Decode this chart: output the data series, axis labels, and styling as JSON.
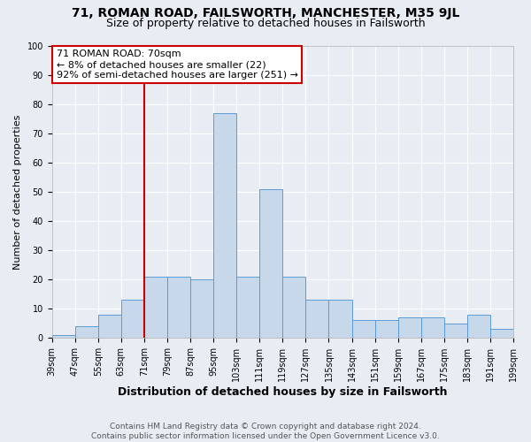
{
  "title": "71, ROMAN ROAD, FAILSWORTH, MANCHESTER, M35 9JL",
  "subtitle": "Size of property relative to detached houses in Failsworth",
  "xlabel": "Distribution of detached houses by size in Failsworth",
  "ylabel": "Number of detached properties",
  "bar_color": "#c8d8eb",
  "bar_edge_color": "#5b9bd5",
  "marker_color": "#cc0000",
  "annotation_title": "71 ROMAN ROAD: 70sqm",
  "annotation_line1": "← 8% of detached houses are smaller (22)",
  "annotation_line2": "92% of semi-detached houses are larger (251) →",
  "footer1": "Contains HM Land Registry data © Crown copyright and database right 2024.",
  "footer2": "Contains public sector information licensed under the Open Government Licence v3.0.",
  "tick_labels": [
    "39sqm",
    "47sqm",
    "55sqm",
    "63sqm",
    "71sqm",
    "79sqm",
    "87sqm",
    "95sqm",
    "103sqm",
    "111sqm",
    "119sqm",
    "127sqm",
    "135sqm",
    "143sqm",
    "151sqm",
    "159sqm",
    "167sqm",
    "175sqm",
    "183sqm",
    "191sqm",
    "199sqm"
  ],
  "bar_values": [
    1,
    4,
    8,
    13,
    21,
    21,
    20,
    77,
    21,
    51,
    21,
    13,
    13,
    6,
    6,
    7,
    7,
    5,
    8,
    3
  ],
  "marker_bin_index": 4,
  "ylim": [
    0,
    100
  ],
  "yticks": [
    0,
    10,
    20,
    30,
    40,
    50,
    60,
    70,
    80,
    90,
    100
  ],
  "background_color": "#e8edf4",
  "grid_color": "#ffffff",
  "title_fontsize": 10,
  "subtitle_fontsize": 9,
  "ylabel_fontsize": 8,
  "xlabel_fontsize": 9,
  "tick_fontsize": 7,
  "footer_fontsize": 6.5,
  "annotation_fontsize": 8
}
